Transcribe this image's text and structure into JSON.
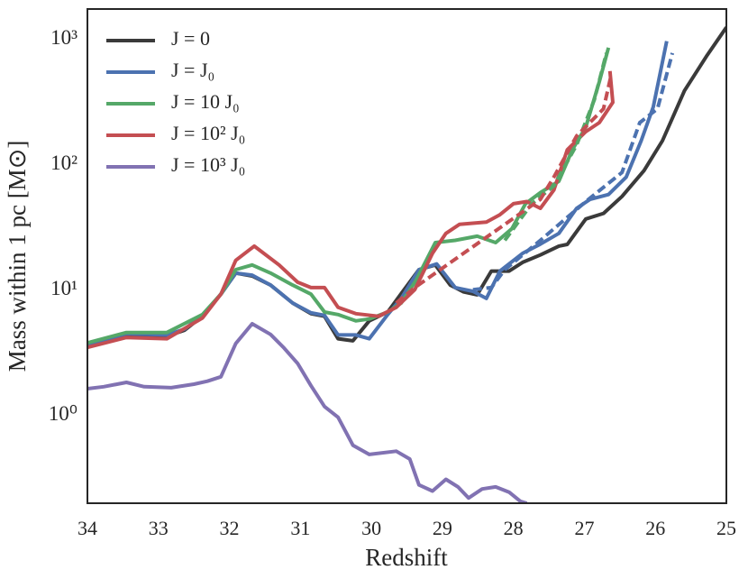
{
  "chart_data": {
    "type": "line",
    "xlabel": "Redshift",
    "ylabel": "Mass within 1 pc [M⊙]",
    "xlim": [
      34,
      25
    ],
    "xticks": [
      34,
      33,
      32,
      31,
      30,
      29,
      28,
      27,
      26,
      25
    ],
    "ylim": [
      0.2,
      1750
    ],
    "yscale": "log",
    "yticks": [
      {
        "value": 1,
        "label": "10⁰"
      },
      {
        "value": 10,
        "label": "10¹"
      },
      {
        "value": 100,
        "label": "10²"
      },
      {
        "value": 1000,
        "label": "10³"
      }
    ],
    "grid": false,
    "legend": "upper left",
    "series": [
      {
        "name": "J = 0",
        "color": "#3a3a3a",
        "dashed": false,
        "x": [
          34.0,
          33.45,
          32.88,
          32.63,
          32.38,
          32.12,
          31.91,
          31.68,
          31.42,
          31.11,
          30.85,
          30.66,
          30.47,
          30.26,
          30.03,
          29.77,
          29.58,
          29.33,
          29.1,
          28.89,
          28.7,
          28.51,
          28.31,
          28.06,
          27.87,
          27.62,
          27.36,
          27.24,
          26.98,
          26.73,
          26.47,
          26.16,
          25.9,
          25.59,
          25.27,
          25.0
        ],
        "values": [
          3.6,
          4.4,
          4.3,
          4.8,
          6.2,
          9.3,
          13.7,
          13,
          11,
          7.9,
          6.5,
          6.2,
          4.1,
          3.95,
          5.7,
          6.7,
          9.4,
          14.6,
          15.9,
          11,
          9.7,
          9.2,
          14.2,
          14.2,
          16.7,
          19.1,
          22.5,
          23.2,
          37,
          41,
          56,
          90,
          156,
          390,
          750,
          1250
        ]
      },
      {
        "name": "J = J₀",
        "color": "#4c72b0",
        "dashed": false,
        "x": [
          34.0,
          33.45,
          32.88,
          32.63,
          32.38,
          32.12,
          31.91,
          31.68,
          31.42,
          31.11,
          30.85,
          30.66,
          30.47,
          30.22,
          30.03,
          29.77,
          29.58,
          29.33,
          29.08,
          28.82,
          28.57,
          28.38,
          28.19,
          27.87,
          27.62,
          27.36,
          27.11,
          26.92,
          26.66,
          26.41,
          26.2,
          26.03,
          25.84
        ],
        "values": [
          3.7,
          4.5,
          4.4,
          4.9,
          6.3,
          9.3,
          13.7,
          13.2,
          11,
          7.9,
          6.6,
          6.3,
          4.4,
          4.4,
          4.1,
          6.4,
          8.6,
          14.6,
          16.2,
          10.5,
          9.8,
          8.6,
          14.2,
          19.7,
          23.3,
          28.4,
          45,
          53,
          58,
          80,
          156,
          290,
          970
        ]
      },
      {
        "name": "J = 10 J₀",
        "color": "#55a868",
        "dashed": false,
        "x": [
          34.0,
          33.45,
          32.88,
          32.38,
          32.12,
          31.91,
          31.68,
          31.42,
          31.11,
          30.85,
          30.66,
          30.47,
          30.22,
          30.03,
          29.77,
          29.58,
          29.37,
          29.1,
          28.82,
          28.51,
          28.25,
          28.02,
          27.83,
          27.62,
          27.36,
          27.17,
          26.98,
          26.79,
          26.66
        ],
        "values": [
          3.8,
          4.6,
          4.6,
          6.4,
          9.3,
          14.6,
          15.9,
          13.7,
          11,
          9.3,
          6.7,
          6.4,
          5.7,
          5.9,
          6.7,
          7.9,
          12,
          24,
          25,
          27,
          24,
          31,
          49,
          60,
          74,
          132,
          200,
          460,
          860
        ]
      },
      {
        "name": "J = 10² J₀",
        "color": "#c44e52",
        "dashed": false,
        "x": [
          34.0,
          33.45,
          32.88,
          32.38,
          32.12,
          31.91,
          31.65,
          31.3,
          31.04,
          30.85,
          30.66,
          30.47,
          30.22,
          29.9,
          29.65,
          29.39,
          29.14,
          28.95,
          28.76,
          28.38,
          28.19,
          28.0,
          27.81,
          27.62,
          27.43,
          27.24,
          26.98,
          26.79,
          26.6,
          26.64
        ],
        "values": [
          3.5,
          4.2,
          4.1,
          6,
          9.3,
          17.3,
          22.5,
          15.9,
          11.6,
          10.5,
          10.5,
          7.3,
          6.5,
          6.2,
          7.3,
          10.1,
          19.7,
          28.4,
          33.5,
          35,
          40,
          49,
          51,
          45,
          63,
          132,
          184,
          217,
          315,
          560
        ]
      },
      {
        "name": "J = 10³ J₀",
        "color": "#8172b2",
        "dashed": false,
        "x": [
          34.0,
          33.77,
          33.45,
          33.2,
          32.82,
          32.5,
          32.31,
          32.12,
          31.91,
          31.68,
          31.42,
          31.23,
          31.04,
          30.85,
          30.66,
          30.47,
          30.26,
          30.03,
          29.65,
          29.46,
          29.33,
          29.14,
          28.95,
          28.78,
          28.63,
          28.44,
          28.25,
          28.06,
          27.9,
          27.81
        ],
        "values": [
          1.64,
          1.7,
          1.84,
          1.7,
          1.67,
          1.78,
          1.88,
          2.04,
          3.76,
          5.4,
          4.44,
          3.46,
          2.61,
          1.73,
          1.18,
          0.97,
          0.58,
          0.49,
          0.52,
          0.45,
          0.28,
          0.25,
          0.31,
          0.27,
          0.22,
          0.26,
          0.27,
          0.245,
          0.207,
          0.2
        ]
      },
      {
        "color": "#4c72b0",
        "dashed": true,
        "x": [
          28.57,
          28.31,
          28.12,
          27.62,
          26.98,
          26.47,
          26.22,
          25.97,
          25.76
        ],
        "values": [
          10.1,
          10.5,
          14.6,
          25,
          51,
          87,
          217,
          280,
          780
        ]
      },
      {
        "color": "#55a868",
        "dashed": true,
        "x": [
          28.12,
          27.74,
          27.43,
          27.11,
          26.86,
          26.69
        ],
        "values": [
          25,
          49,
          68,
          144,
          330,
          780
        ]
      },
      {
        "color": "#c44e52",
        "dashed": true,
        "x": [
          29.65,
          29.39,
          27.62,
          27.43,
          27.11,
          26.73,
          26.63
        ],
        "values": [
          7.9,
          10.5,
          53,
          80,
          170,
          280,
          500
        ]
      }
    ]
  }
}
